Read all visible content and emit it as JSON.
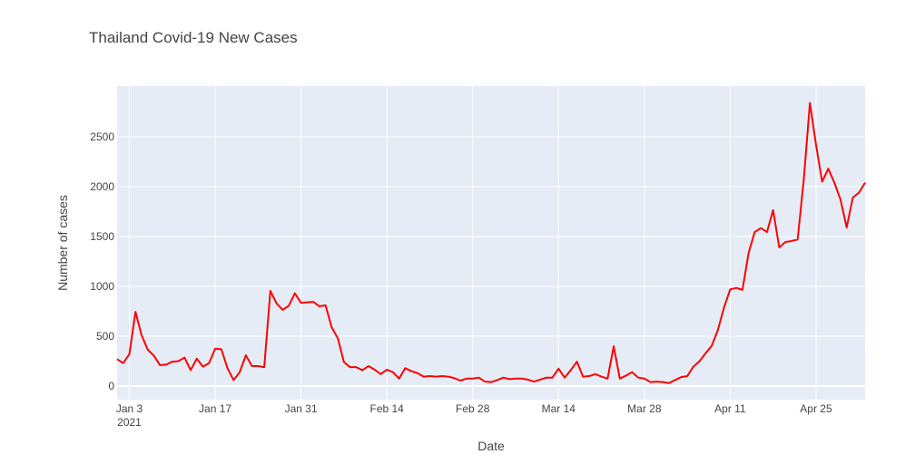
{
  "chart_data": {
    "type": "line",
    "title": "Thailand Covid-19 New Cases",
    "x_label": "Date",
    "y_label": "Number of cases",
    "color": "#ff0000",
    "grid": true,
    "x": [
      "2021-01-01",
      "2021-01-02",
      "2021-01-03",
      "2021-01-04",
      "2021-01-05",
      "2021-01-06",
      "2021-01-07",
      "2021-01-08",
      "2021-01-09",
      "2021-01-10",
      "2021-01-11",
      "2021-01-12",
      "2021-01-13",
      "2021-01-14",
      "2021-01-15",
      "2021-01-16",
      "2021-01-17",
      "2021-01-18",
      "2021-01-19",
      "2021-01-20",
      "2021-01-21",
      "2021-01-22",
      "2021-01-23",
      "2021-01-24",
      "2021-01-25",
      "2021-01-26",
      "2021-01-27",
      "2021-01-28",
      "2021-01-29",
      "2021-01-30",
      "2021-01-31",
      "2021-02-01",
      "2021-02-02",
      "2021-02-03",
      "2021-02-04",
      "2021-02-05",
      "2021-02-06",
      "2021-02-07",
      "2021-02-08",
      "2021-02-09",
      "2021-02-10",
      "2021-02-11",
      "2021-02-12",
      "2021-02-13",
      "2021-02-14",
      "2021-02-15",
      "2021-02-16",
      "2021-02-17",
      "2021-02-18",
      "2021-02-19",
      "2021-02-20",
      "2021-02-21",
      "2021-02-22",
      "2021-02-23",
      "2021-02-24",
      "2021-02-25",
      "2021-02-26",
      "2021-02-27",
      "2021-02-28",
      "2021-03-01",
      "2021-03-02",
      "2021-03-03",
      "2021-03-04",
      "2021-03-05",
      "2021-03-06",
      "2021-03-07",
      "2021-03-08",
      "2021-03-09",
      "2021-03-10",
      "2021-03-11",
      "2021-03-12",
      "2021-03-13",
      "2021-03-14",
      "2021-03-15",
      "2021-03-16",
      "2021-03-17",
      "2021-03-18",
      "2021-03-19",
      "2021-03-20",
      "2021-03-21",
      "2021-03-22",
      "2021-03-23",
      "2021-03-24",
      "2021-03-25",
      "2021-03-26",
      "2021-03-27",
      "2021-03-28",
      "2021-03-29",
      "2021-03-30",
      "2021-03-31",
      "2021-04-01",
      "2021-04-02",
      "2021-04-03",
      "2021-04-04",
      "2021-04-05",
      "2021-04-06",
      "2021-04-07",
      "2021-04-08",
      "2021-04-09",
      "2021-04-10",
      "2021-04-11",
      "2021-04-12",
      "2021-04-13",
      "2021-04-14",
      "2021-04-15",
      "2021-04-16",
      "2021-04-17",
      "2021-04-18",
      "2021-04-19",
      "2021-04-20",
      "2021-04-21",
      "2021-04-22",
      "2021-04-23",
      "2021-04-24",
      "2021-04-25",
      "2021-04-26",
      "2021-04-27",
      "2021-04-28",
      "2021-04-29",
      "2021-04-30",
      "2021-05-01",
      "2021-05-02",
      "2021-05-03"
    ],
    "values": [
      270,
      230,
      320,
      745,
      510,
      365,
      305,
      210,
      215,
      245,
      250,
      285,
      160,
      275,
      195,
      230,
      375,
      370,
      180,
      60,
      140,
      310,
      200,
      200,
      190,
      955,
      830,
      765,
      805,
      930,
      835,
      840,
      845,
      800,
      810,
      590,
      480,
      240,
      190,
      190,
      160,
      200,
      165,
      120,
      165,
      140,
      75,
      180,
      150,
      130,
      95,
      100,
      95,
      100,
      95,
      80,
      55,
      75,
      75,
      85,
      45,
      40,
      60,
      85,
      70,
      75,
      75,
      65,
      45,
      65,
      85,
      85,
      175,
      85,
      160,
      245,
      95,
      100,
      120,
      95,
      75,
      400,
      75,
      105,
      140,
      85,
      75,
      40,
      45,
      40,
      30,
      60,
      90,
      100,
      195,
      250,
      330,
      405,
      565,
      790,
      970,
      985,
      965,
      1335,
      1545,
      1585,
      1545,
      1765,
      1390,
      1445,
      1455,
      1470,
      2070,
      2840,
      2420,
      2050,
      2180,
      2040,
      1870,
      1590,
      1890,
      1940,
      2040
    ],
    "xlim": [
      "2021-01-01",
      "2021-05-03"
    ],
    "xticks": [
      {
        "value": "2021-01-03",
        "label": "Jan 3\n2021"
      },
      {
        "value": "2021-01-17",
        "label": "Jan 17"
      },
      {
        "value": "2021-01-31",
        "label": "Jan 31"
      },
      {
        "value": "2021-02-14",
        "label": "Feb 14"
      },
      {
        "value": "2021-02-28",
        "label": "Feb 28"
      },
      {
        "value": "2021-03-14",
        "label": "Mar 14"
      },
      {
        "value": "2021-03-28",
        "label": "Mar 28"
      },
      {
        "value": "2021-04-11",
        "label": "Apr 11"
      },
      {
        "value": "2021-04-25",
        "label": "Apr 25"
      }
    ],
    "ylim": [
      -136,
      3009
    ],
    "yticks": [
      0,
      500,
      1000,
      1500,
      2000,
      2500
    ]
  }
}
